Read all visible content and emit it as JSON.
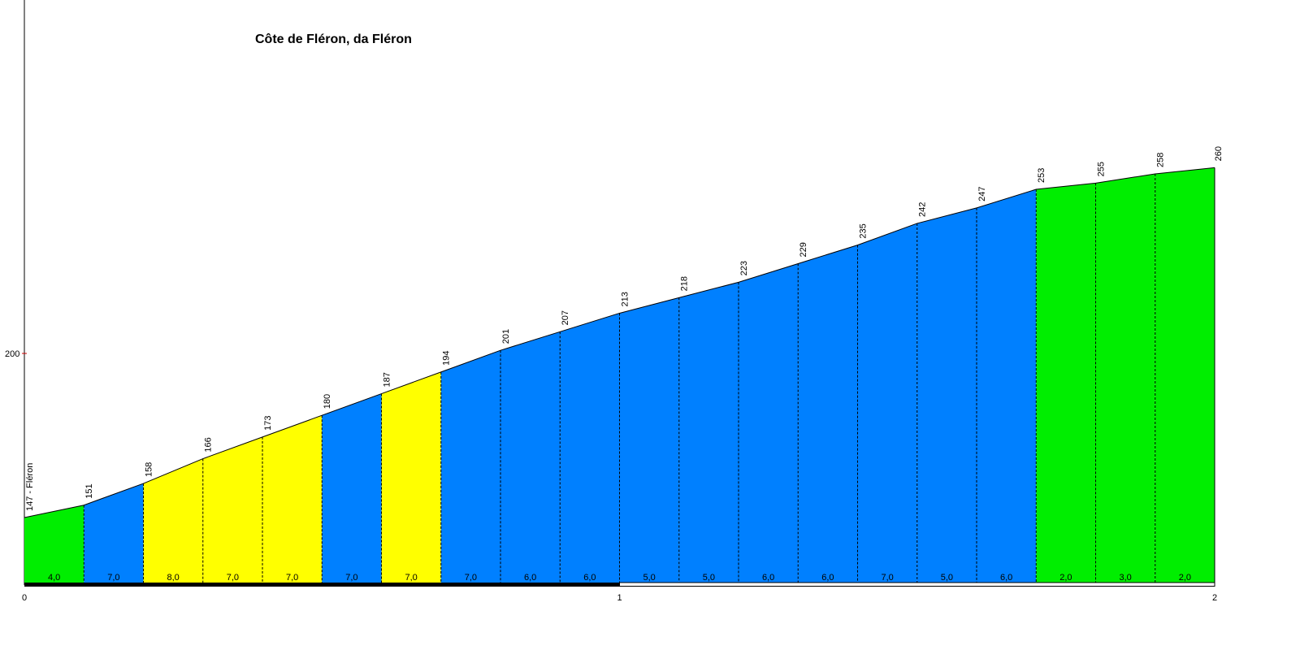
{
  "chart_data": {
    "type": "area",
    "title": "Côte de Fléron, da Fléron",
    "xlabel": "",
    "ylabel": "",
    "xlim": [
      0,
      2
    ],
    "ylim": [
      126,
      280
    ],
    "x_ticks": [
      "0",
      "1",
      "2"
    ],
    "y_ticks": [
      "200"
    ],
    "start_label": "147 - Fléron",
    "x": [
      0,
      0.1,
      0.2,
      0.3,
      0.4,
      0.5,
      0.6,
      0.7,
      0.8,
      0.9,
      1.0,
      1.1,
      1.2,
      1.3,
      1.4,
      1.5,
      1.6,
      1.7,
      1.8,
      1.9,
      2.0
    ],
    "elevation": [
      147,
      151,
      158,
      166,
      173,
      180,
      187,
      194,
      201,
      207,
      213,
      218,
      223,
      229,
      235,
      242,
      247,
      253,
      255,
      258,
      260
    ],
    "elevation_labels": [
      "147 - Fléron",
      "151",
      "158",
      "166",
      "173",
      "180",
      "187",
      "194",
      "201",
      "207",
      "213",
      "218",
      "223",
      "229",
      "235",
      "242",
      "247",
      "253",
      "255",
      "258",
      "260"
    ],
    "segment_grades": [
      "4,0",
      "7,0",
      "8,0",
      "7,0",
      "7,0",
      "7,0",
      "7,0",
      "7,0",
      "6,0",
      "6,0",
      "5,0",
      "5,0",
      "6,0",
      "6,0",
      "7,0",
      "5,0",
      "6,0",
      "2,0",
      "3,0",
      "2,0"
    ],
    "segment_colors": [
      "#00ee00",
      "#0080ff",
      "#ffff00",
      "#ffff00",
      "#ffff00",
      "#0080ff",
      "#ffff00",
      "#0080ff",
      "#0080ff",
      "#0080ff",
      "#0080ff",
      "#0080ff",
      "#0080ff",
      "#0080ff",
      "#0080ff",
      "#0080ff",
      "#0080ff",
      "#00ee00",
      "#00ee00",
      "#00ee00"
    ],
    "grid": false,
    "legend": "none"
  }
}
